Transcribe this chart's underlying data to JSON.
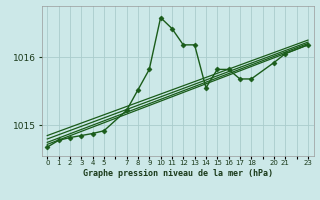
{
  "xlabel": "Graphe pression niveau de la mer (hPa)",
  "background_color": "#cce8e8",
  "grid_color": "#aacccc",
  "line_color": "#1a5c1a",
  "xlim": [
    -0.5,
    23.5
  ],
  "ylim": [
    1014.55,
    1016.75
  ],
  "yticks": [
    1015,
    1016
  ],
  "xticks": [
    0,
    1,
    2,
    3,
    4,
    5,
    7,
    8,
    9,
    10,
    11,
    12,
    13,
    14,
    15,
    16,
    17,
    18,
    20,
    21,
    23
  ],
  "series": [
    {
      "x": [
        0,
        1,
        2,
        3,
        4,
        5,
        7,
        8,
        9,
        10,
        11,
        12,
        13,
        14,
        15,
        16,
        17,
        18,
        20,
        21,
        23
      ],
      "y": [
        1014.68,
        1014.78,
        1014.82,
        1014.85,
        1014.88,
        1014.92,
        1015.22,
        1015.52,
        1015.82,
        1016.58,
        1016.42,
        1016.18,
        1016.18,
        1015.55,
        1015.82,
        1015.82,
        1015.68,
        1015.68,
        1015.92,
        1016.05,
        1016.18
      ],
      "marker": "D",
      "markersize": 2.5,
      "linewidth": 1.0,
      "zorder": 5
    },
    {
      "x": [
        0,
        23
      ],
      "y": [
        1014.72,
        1016.18
      ],
      "marker": null,
      "markersize": 0,
      "linewidth": 0.9,
      "zorder": 3
    },
    {
      "x": [
        0,
        23
      ],
      "y": [
        1014.75,
        1016.2
      ],
      "marker": null,
      "markersize": 0,
      "linewidth": 0.9,
      "zorder": 3
    },
    {
      "x": [
        0,
        23
      ],
      "y": [
        1014.8,
        1016.22
      ],
      "marker": null,
      "markersize": 0,
      "linewidth": 0.9,
      "zorder": 3
    },
    {
      "x": [
        0,
        23
      ],
      "y": [
        1014.85,
        1016.25
      ],
      "marker": null,
      "markersize": 0,
      "linewidth": 0.9,
      "zorder": 3
    }
  ]
}
